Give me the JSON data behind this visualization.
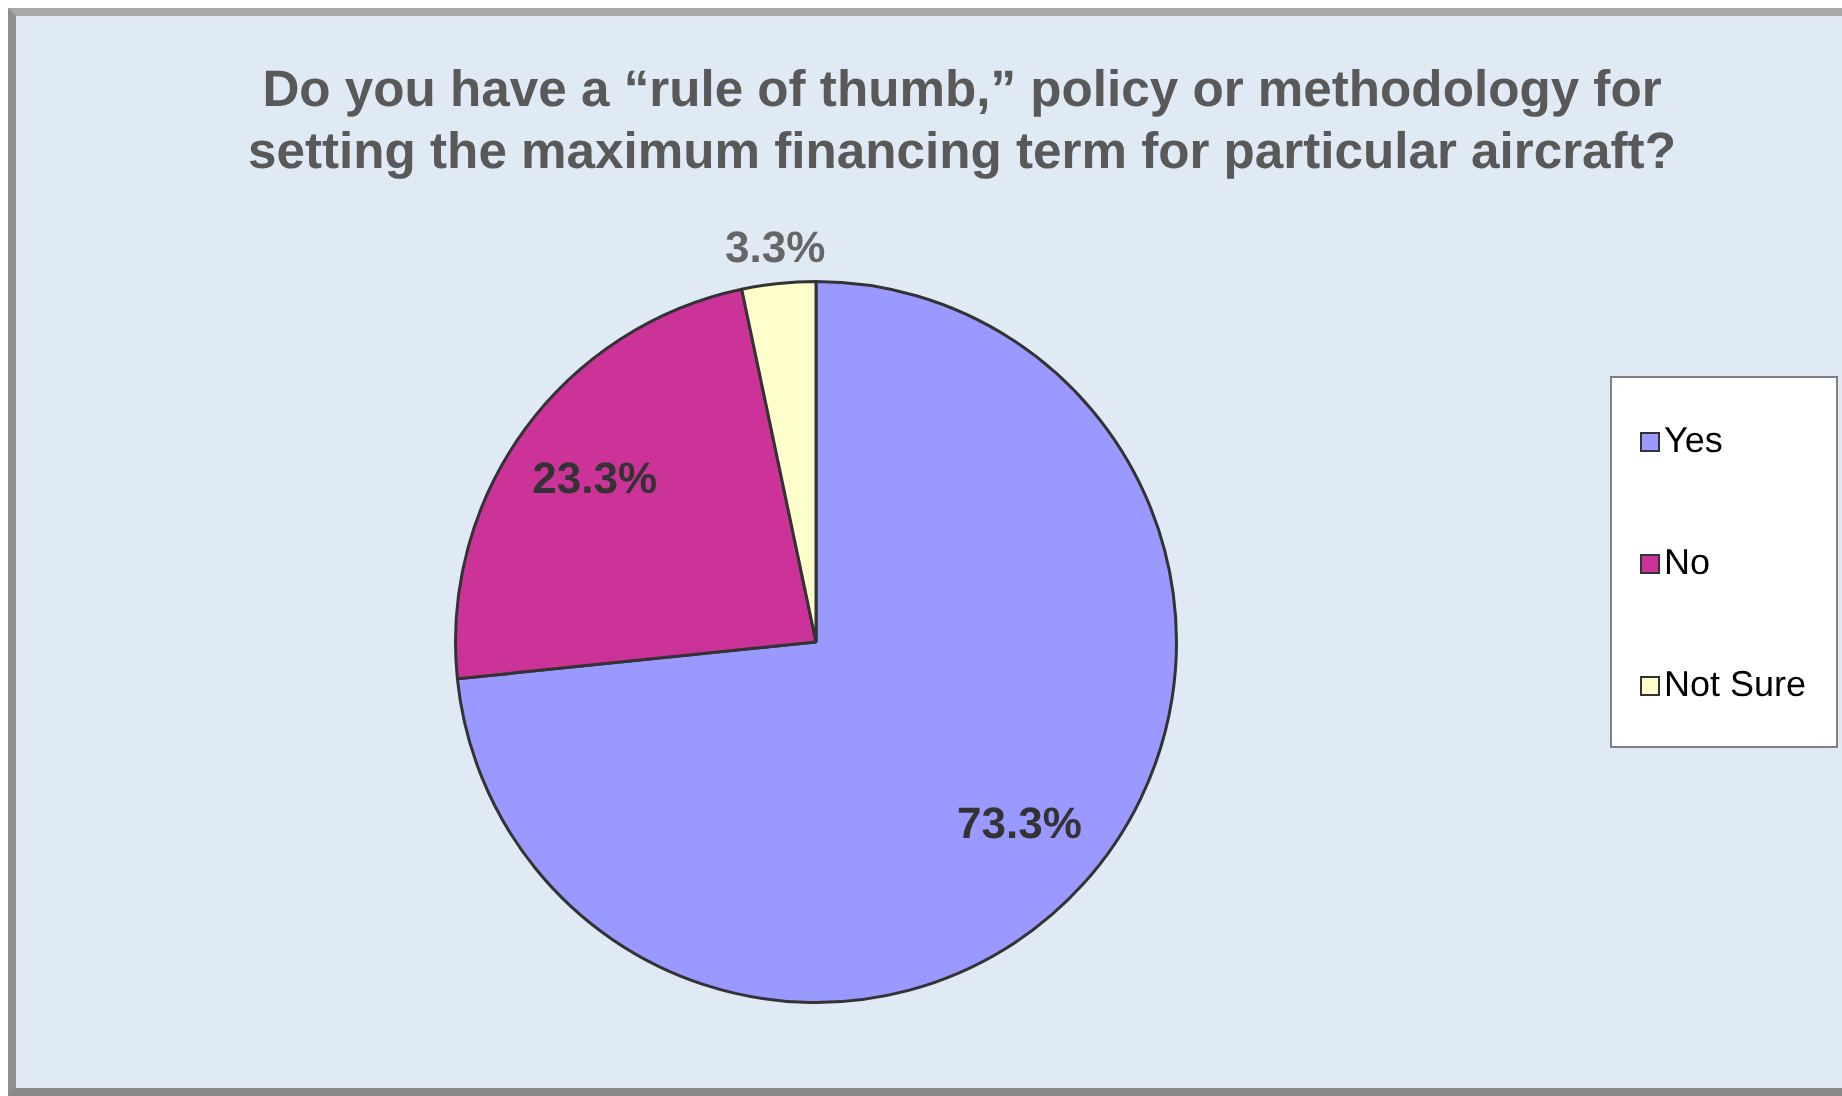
{
  "chart_data": {
    "type": "pie",
    "title": "Do you have a “rule of thumb,” policy or methodology for setting the maximum financing term for particular aircraft?",
    "categories": [
      "Yes",
      "No",
      "Not Sure"
    ],
    "values": [
      73.3,
      23.3,
      3.3
    ],
    "colors": [
      "#9999ff",
      "#cc3399",
      "#ffffcc"
    ],
    "value_labels": [
      "73.3%",
      "23.3%",
      "3.3%"
    ],
    "legend": "right"
  }
}
